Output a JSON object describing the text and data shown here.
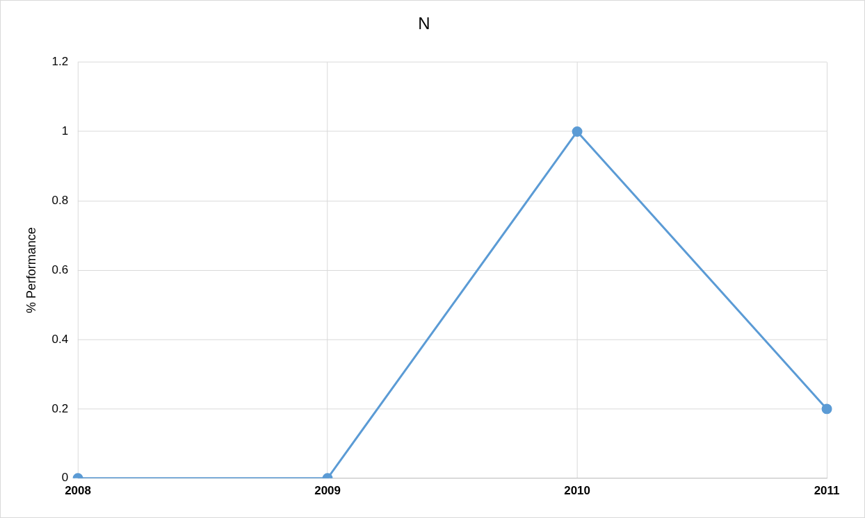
{
  "chart_data": {
    "type": "line",
    "title": "N",
    "ylabel": "% Performance",
    "categories": [
      "2008",
      "2009",
      "2010",
      "2011"
    ],
    "series": [
      {
        "color": "#5b9bd5",
        "values": [
          0,
          0,
          1,
          0.2
        ]
      }
    ],
    "ylim": [
      0,
      1.2
    ],
    "yticks": [
      0,
      0.2,
      0.4,
      0.6,
      0.8,
      1,
      1.2
    ],
    "grid": true,
    "marker": "circle"
  }
}
